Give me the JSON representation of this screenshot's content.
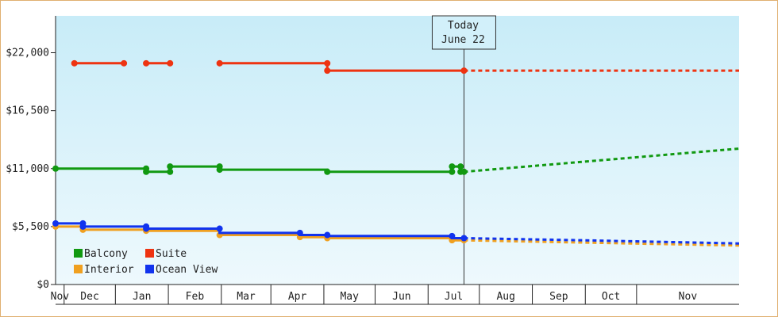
{
  "chart_data": {
    "type": "line",
    "y_ticks": [
      "$0",
      "$5,500",
      "$11,000",
      "$16,500",
      "$22,000"
    ],
    "y_tick_values": [
      0,
      5500,
      11000,
      16500,
      22000
    ],
    "ylim": [
      0,
      25500
    ],
    "months": [
      "Nov",
      "Dec",
      "Jan",
      "Feb",
      "Mar",
      "Apr",
      "May",
      "Jun",
      "Jul",
      "Aug",
      "Sep",
      "Oct",
      "Nov"
    ],
    "today": {
      "line1": "Today",
      "line2": "June 22"
    },
    "x_domain": [
      "2015-10-27",
      "2016-11-30"
    ],
    "legend_position": "bottom-left",
    "grid": false,
    "series": [
      {
        "name": "Balcony",
        "color": "#119911",
        "points": [
          [
            "2015-10-27",
            11000
          ],
          [
            "2015-11-28",
            11000
          ],
          [
            "2015-12-19",
            11000
          ],
          [
            "2015-12-19",
            10700
          ],
          [
            "2016-01-02",
            10700
          ],
          [
            "2016-01-02",
            11200
          ],
          [
            "2016-01-31",
            11200
          ],
          [
            "2016-01-31",
            10900
          ],
          [
            "2016-04-03",
            10900
          ],
          [
            "2016-04-03",
            10700
          ],
          [
            "2016-06-15",
            10700
          ],
          [
            "2016-06-15",
            11200
          ],
          [
            "2016-06-20",
            11200
          ],
          [
            "2016-06-20",
            10700
          ],
          [
            "2016-06-22",
            10700
          ]
        ],
        "markers": [
          [
            "2015-10-27",
            11000
          ],
          [
            "2015-12-19",
            11000
          ],
          [
            "2015-12-19",
            10700
          ],
          [
            "2016-01-02",
            10700
          ],
          [
            "2016-01-02",
            11200
          ],
          [
            "2016-01-31",
            11200
          ],
          [
            "2016-01-31",
            10900
          ],
          [
            "2016-04-03",
            10700
          ],
          [
            "2016-06-15",
            10700
          ],
          [
            "2016-06-15",
            11200
          ],
          [
            "2016-06-20",
            11200
          ],
          [
            "2016-06-20",
            10700
          ],
          [
            "2016-06-22",
            10700
          ]
        ],
        "projection": [
          [
            "2016-06-22",
            10700
          ],
          [
            "2016-11-30",
            12900
          ]
        ]
      },
      {
        "name": "Suite",
        "color": "#ee3311",
        "segments": [
          [
            [
              "2015-11-07",
              21000
            ],
            [
              "2015-12-06",
              21000
            ]
          ],
          [
            [
              "2015-12-19",
              21000
            ],
            [
              "2016-01-02",
              21000
            ]
          ],
          [
            [
              "2016-01-31",
              21000
            ],
            [
              "2016-04-03",
              21000
            ],
            [
              "2016-04-03",
              20300
            ],
            [
              "2016-06-22",
              20300
            ]
          ]
        ],
        "markers": [
          [
            "2015-11-07",
            21000
          ],
          [
            "2015-12-06",
            21000
          ],
          [
            "2015-12-19",
            21000
          ],
          [
            "2016-01-02",
            21000
          ],
          [
            "2016-01-31",
            21000
          ],
          [
            "2016-04-03",
            21000
          ],
          [
            "2016-04-03",
            20300
          ],
          [
            "2016-06-22",
            20300
          ]
        ],
        "projection": [
          [
            "2016-06-22",
            20300
          ],
          [
            "2016-11-30",
            20300
          ]
        ]
      },
      {
        "name": "Interior",
        "color": "#f0a020",
        "points": [
          [
            "2015-10-27",
            5500
          ],
          [
            "2015-11-12",
            5500
          ],
          [
            "2015-11-12",
            5200
          ],
          [
            "2015-12-19",
            5200
          ],
          [
            "2015-12-19",
            5100
          ],
          [
            "2016-01-31",
            5100
          ],
          [
            "2016-01-31",
            4700
          ],
          [
            "2016-03-18",
            4700
          ],
          [
            "2016-03-18",
            4500
          ],
          [
            "2016-04-03",
            4500
          ],
          [
            "2016-04-03",
            4400
          ],
          [
            "2016-06-15",
            4400
          ],
          [
            "2016-06-15",
            4200
          ],
          [
            "2016-06-22",
            4200
          ]
        ],
        "markers": [
          [
            "2015-10-27",
            5500
          ],
          [
            "2015-11-12",
            5200
          ],
          [
            "2015-12-19",
            5100
          ],
          [
            "2016-01-31",
            4700
          ],
          [
            "2016-03-18",
            4500
          ],
          [
            "2016-04-03",
            4400
          ],
          [
            "2016-06-15",
            4200
          ],
          [
            "2016-06-22",
            4200
          ]
        ],
        "projection": [
          [
            "2016-06-22",
            4200
          ],
          [
            "2016-11-30",
            3700
          ]
        ]
      },
      {
        "name": "Ocean View",
        "color": "#1133ee",
        "points": [
          [
            "2015-10-27",
            5800
          ],
          [
            "2015-11-12",
            5800
          ],
          [
            "2015-11-12",
            5500
          ],
          [
            "2015-12-19",
            5500
          ],
          [
            "2015-12-19",
            5300
          ],
          [
            "2016-01-31",
            5300
          ],
          [
            "2016-01-31",
            4900
          ],
          [
            "2016-03-18",
            4900
          ],
          [
            "2016-03-18",
            4700
          ],
          [
            "2016-04-03",
            4700
          ],
          [
            "2016-04-03",
            4600
          ],
          [
            "2016-06-15",
            4600
          ],
          [
            "2016-06-15",
            4400
          ],
          [
            "2016-06-22",
            4400
          ]
        ],
        "markers": [
          [
            "2015-10-27",
            5800
          ],
          [
            "2015-11-12",
            5800
          ],
          [
            "2015-11-12",
            5500
          ],
          [
            "2015-12-19",
            5500
          ],
          [
            "2015-12-19",
            5300
          ],
          [
            "2016-01-31",
            5300
          ],
          [
            "2016-03-18",
            4900
          ],
          [
            "2016-04-03",
            4700
          ],
          [
            "2016-06-15",
            4600
          ],
          [
            "2016-06-22",
            4400
          ]
        ],
        "projection": [
          [
            "2016-06-22",
            4400
          ],
          [
            "2016-08-31",
            4200
          ],
          [
            "2016-09-30",
            4100
          ],
          [
            "2016-11-30",
            3900
          ]
        ]
      }
    ]
  }
}
